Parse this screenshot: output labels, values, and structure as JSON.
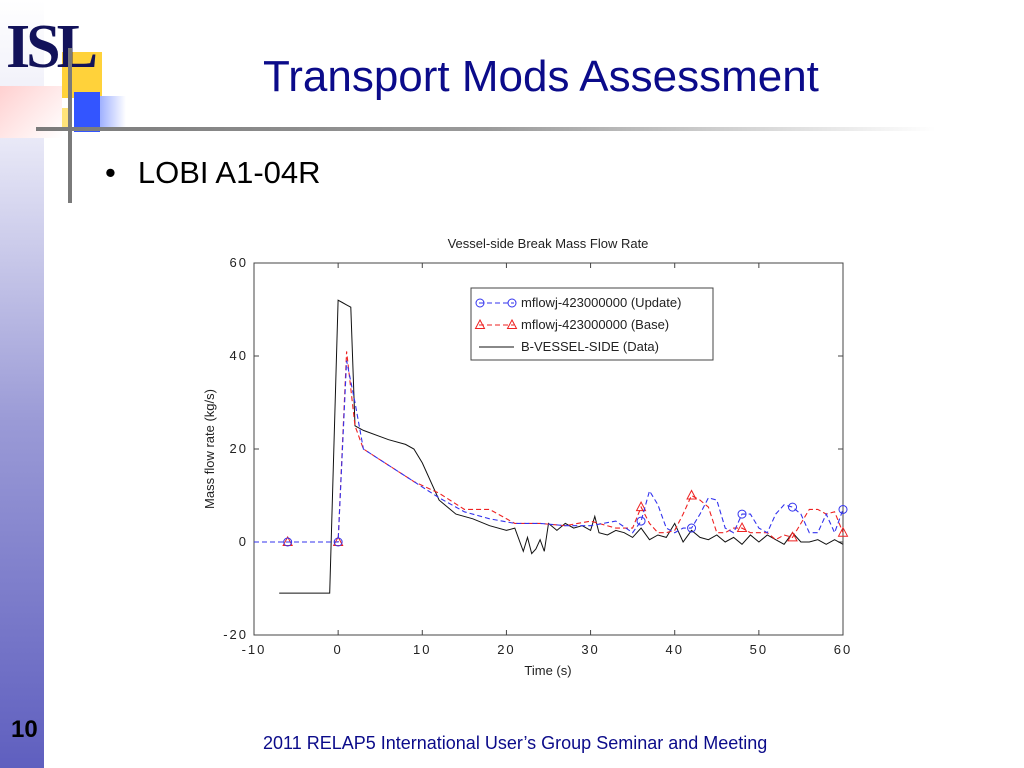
{
  "slide": {
    "title": "Transport Mods Assessment",
    "bullet": "LOBI A1-04R",
    "bullet_symbol": "•",
    "page_number": "10",
    "footer": "2011 RELAP5 International User’s Group Seminar and Meeting",
    "logo_text": "ISL",
    "colors": {
      "title": "#0b0b8a",
      "sidebar": "#6060c0",
      "accent_yellow": "#ffd23a",
      "accent_blue": "#3355ff"
    }
  },
  "chart_data": {
    "type": "line",
    "title": "Vessel-side Break Mass Flow Rate",
    "xlabel": "Time (s)",
    "ylabel": "Mass flow rate (kg/s)",
    "xlim": [
      -10,
      60
    ],
    "ylim": [
      -20,
      60
    ],
    "xticks": [
      "-10",
      "0",
      "10",
      "20",
      "30",
      "40",
      "50",
      "60"
    ],
    "yticks": [
      "-20",
      "0",
      "20",
      "40",
      "60"
    ],
    "grid": false,
    "legend_position": "top-right",
    "series": [
      {
        "name": "mflowj-423000000 (Update)",
        "color": "#3333ee",
        "dash": "dashed",
        "marker": "circle",
        "x": [
          -10,
          -6,
          0,
          1,
          2,
          3,
          6,
          9,
          12,
          15,
          18,
          21,
          24,
          27,
          30,
          33,
          35,
          36,
          37,
          38,
          39,
          40,
          41,
          42,
          43,
          44,
          45,
          46,
          47,
          48,
          49,
          50,
          51,
          52,
          53,
          54,
          55,
          56,
          57,
          58,
          59,
          60
        ],
        "y": [
          0,
          0,
          0,
          39,
          30,
          20,
          16.5,
          13,
          9.5,
          6.5,
          5,
          4,
          4,
          3.5,
          3.5,
          4.5,
          2,
          4.5,
          11,
          8,
          3,
          2,
          3,
          3,
          6,
          9.5,
          9,
          3,
          2,
          6,
          6,
          3,
          2,
          6,
          8,
          7.5,
          6,
          2,
          2,
          6,
          2,
          7
        ]
      },
      {
        "name": "mflowj-423000000 (Base)",
        "color": "#ee2222",
        "dash": "dashed",
        "marker": "triangle",
        "x": [
          -10,
          -6,
          0,
          1,
          2,
          3,
          6,
          9,
          12,
          15,
          18,
          21,
          24,
          27,
          30,
          33,
          35,
          36,
          37,
          38,
          39,
          40,
          41,
          42,
          43,
          44,
          45,
          46,
          47,
          48,
          49,
          50,
          51,
          52,
          53,
          54,
          55,
          56,
          57,
          58,
          59,
          60
        ],
        "y": [
          0,
          0,
          0,
          41,
          25,
          20,
          16.5,
          13,
          10.5,
          7,
          7,
          4,
          4,
          3.5,
          4.5,
          3,
          3,
          7.5,
          4,
          2,
          2,
          2.5,
          6,
          10,
          9,
          7.5,
          2,
          2,
          3,
          3,
          2,
          2,
          2,
          0.5,
          1.5,
          1,
          4,
          7,
          7,
          6,
          6.5,
          2
        ]
      },
      {
        "name": "B-VESSEL-SIDE (Data)",
        "color": "#111111",
        "dash": "solid",
        "marker": "none",
        "x": [
          -7,
          -1,
          0,
          0.5,
          1,
          1.5,
          2,
          3,
          6,
          8,
          9,
          10,
          12,
          14,
          16,
          18,
          20,
          21,
          22,
          22.5,
          23,
          23.5,
          24,
          24.5,
          25,
          26,
          27,
          28,
          29,
          30,
          30.5,
          31,
          32,
          33,
          34,
          35,
          36,
          37,
          38,
          39,
          40,
          41,
          42,
          43,
          44,
          45,
          46,
          47,
          48,
          49,
          50,
          51,
          52,
          53,
          54,
          55,
          56,
          57,
          58,
          59,
          60
        ],
        "y": [
          -11,
          -11,
          52,
          51.5,
          51,
          50.5,
          25,
          24,
          22,
          21,
          20,
          17,
          9,
          6,
          5,
          3.5,
          2.5,
          3,
          -2,
          1,
          -2.5,
          -1.5,
          0.5,
          -2,
          4,
          2.5,
          4,
          3,
          3.5,
          2.5,
          5.5,
          2,
          1.5,
          2.5,
          2,
          1,
          3,
          0.5,
          1.5,
          1,
          4,
          0,
          2.5,
          1,
          0.5,
          1.5,
          0,
          1,
          -0.5,
          1.5,
          0,
          1.5,
          0.5,
          -0.5,
          2,
          0,
          0,
          0.5,
          -0.5,
          0.5,
          -0.5
        ]
      }
    ]
  }
}
